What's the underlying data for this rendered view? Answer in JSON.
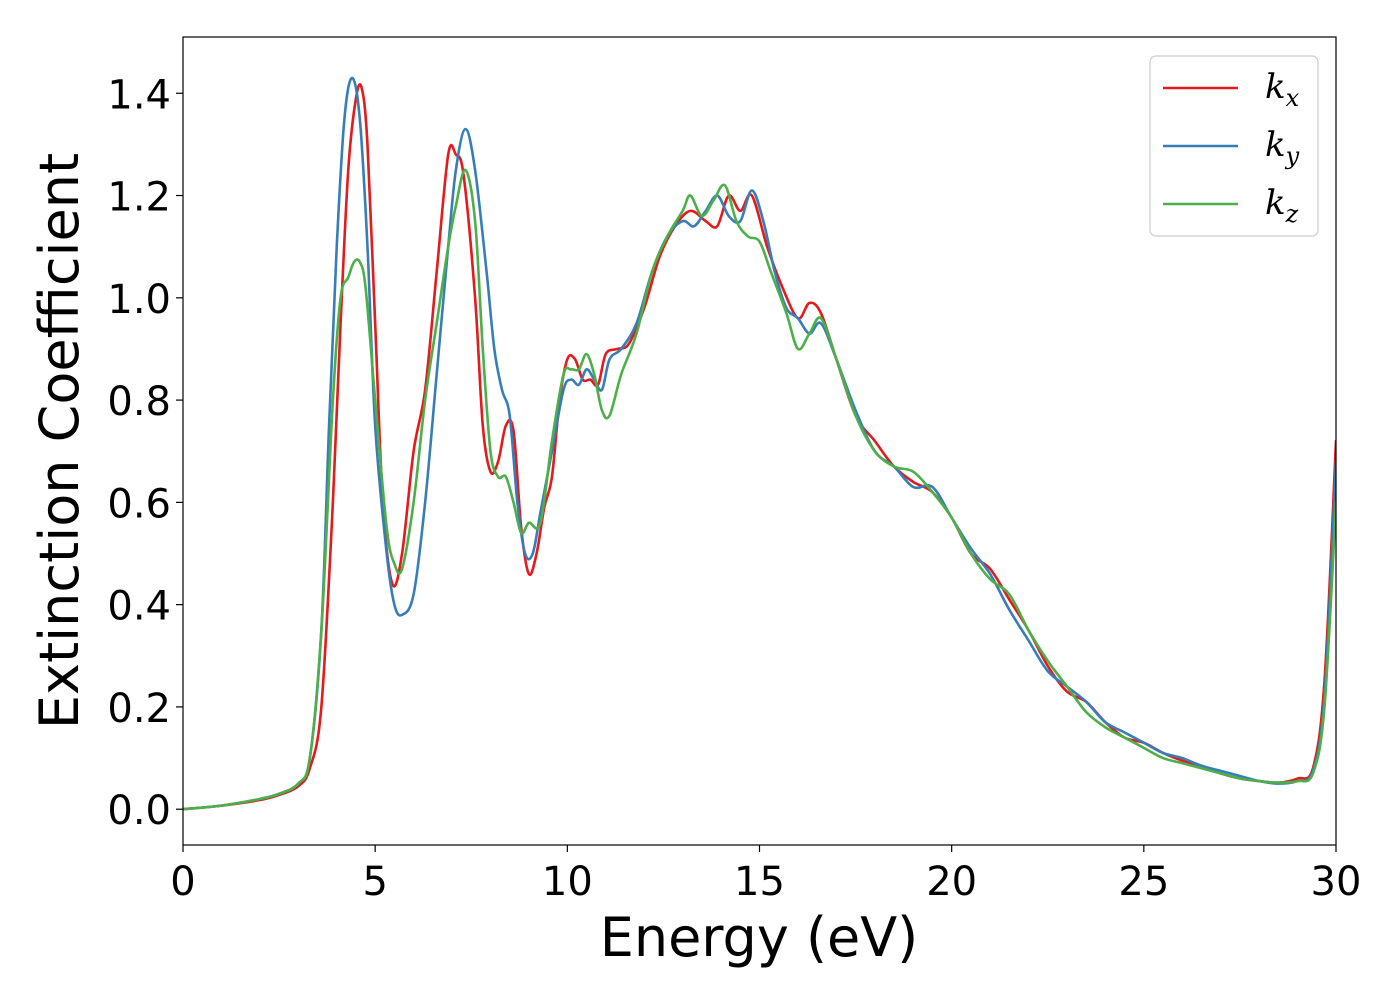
{
  "chart_data": {
    "type": "line",
    "title": "",
    "xlabel": "Energy (eV)",
    "ylabel": "Extinction Coefficient",
    "xlim": [
      0,
      30
    ],
    "ylim": [
      -0.07,
      1.51
    ],
    "xticks": [
      0,
      5,
      10,
      15,
      20,
      25,
      30
    ],
    "yticks": [
      0.0,
      0.2,
      0.4,
      0.6,
      0.8,
      1.0,
      1.2,
      1.4
    ],
    "xtick_labels": [
      "0",
      "5",
      "10",
      "15",
      "20",
      "25",
      "30"
    ],
    "ytick_labels": [
      "0.0",
      "0.2",
      "0.4",
      "0.6",
      "0.8",
      "1.0",
      "1.2",
      "1.4"
    ],
    "grid": false,
    "legend_position": "top-right",
    "series": [
      {
        "name": "k",
        "subscript": "x",
        "color": "#e41a1c",
        "x": [
          0,
          1,
          2,
          2.5,
          3,
          3.3,
          3.6,
          3.9,
          4.1,
          4.3,
          4.5,
          4.65,
          4.8,
          5.0,
          5.2,
          5.45,
          5.7,
          6.0,
          6.3,
          6.6,
          6.9,
          7.1,
          7.3,
          7.6,
          7.8,
          8.0,
          8.2,
          8.4,
          8.6,
          8.8,
          9.0,
          9.2,
          9.4,
          9.6,
          9.8,
          10.0,
          10.2,
          10.4,
          10.6,
          10.8,
          11.0,
          11.3,
          11.6,
          12.0,
          12.4,
          12.8,
          13.2,
          13.6,
          13.9,
          14.2,
          14.5,
          14.8,
          15.2,
          15.6,
          16.0,
          16.3,
          16.6,
          17.0,
          17.5,
          18.0,
          18.5,
          19.0,
          19.5,
          20.0,
          20.5,
          21.0,
          21.5,
          22.0,
          22.5,
          23.0,
          23.5,
          24.0,
          24.5,
          25.0,
          25.5,
          26.0,
          26.5,
          27.0,
          27.5,
          28.0,
          28.5,
          29.0,
          29.4,
          29.7,
          30.0
        ],
        "y": [
          0.0,
          0.007,
          0.018,
          0.028,
          0.045,
          0.08,
          0.2,
          0.6,
          0.95,
          1.25,
          1.39,
          1.41,
          1.3,
          0.95,
          0.6,
          0.44,
          0.5,
          0.7,
          0.82,
          1.05,
          1.28,
          1.28,
          1.24,
          1.0,
          0.75,
          0.66,
          0.68,
          0.75,
          0.74,
          0.55,
          0.46,
          0.5,
          0.59,
          0.65,
          0.8,
          0.88,
          0.88,
          0.84,
          0.84,
          0.83,
          0.89,
          0.9,
          0.91,
          0.98,
          1.08,
          1.14,
          1.17,
          1.15,
          1.14,
          1.2,
          1.17,
          1.2,
          1.1,
          1.02,
          0.96,
          0.99,
          0.97,
          0.88,
          0.77,
          0.72,
          0.67,
          0.64,
          0.62,
          0.57,
          0.5,
          0.47,
          0.41,
          0.35,
          0.28,
          0.23,
          0.21,
          0.17,
          0.14,
          0.13,
          0.11,
          0.095,
          0.085,
          0.07,
          0.06,
          0.055,
          0.052,
          0.06,
          0.08,
          0.25,
          0.72
        ]
      },
      {
        "name": "k",
        "subscript": "y",
        "color": "#377eb8",
        "x": [
          0,
          1,
          2,
          2.5,
          3,
          3.3,
          3.6,
          3.8,
          4.0,
          4.2,
          4.4,
          4.6,
          4.8,
          5.0,
          5.3,
          5.5,
          5.7,
          6.0,
          6.3,
          6.6,
          6.9,
          7.1,
          7.35,
          7.6,
          7.9,
          8.1,
          8.3,
          8.5,
          8.7,
          8.9,
          9.1,
          9.3,
          9.6,
          9.9,
          10.1,
          10.3,
          10.5,
          10.7,
          10.9,
          11.1,
          11.4,
          11.8,
          12.2,
          12.6,
          13.0,
          13.3,
          13.6,
          13.9,
          14.2,
          14.5,
          14.8,
          15.1,
          15.4,
          15.7,
          16.0,
          16.3,
          16.6,
          17.0,
          17.5,
          18.0,
          18.5,
          19.0,
          19.5,
          20.0,
          20.5,
          21.0,
          21.5,
          22.0,
          22.5,
          23.0,
          23.5,
          24.0,
          24.5,
          25.0,
          25.5,
          26.0,
          26.5,
          27.0,
          27.5,
          28.0,
          28.5,
          29.0,
          29.4,
          29.7,
          30.0
        ],
        "y": [
          0.0,
          0.007,
          0.02,
          0.03,
          0.05,
          0.1,
          0.35,
          0.75,
          1.1,
          1.35,
          1.43,
          1.35,
          1.1,
          0.75,
          0.5,
          0.4,
          0.38,
          0.42,
          0.6,
          0.85,
          1.1,
          1.25,
          1.33,
          1.25,
          1.05,
          0.9,
          0.82,
          0.77,
          0.6,
          0.5,
          0.5,
          0.58,
          0.7,
          0.82,
          0.84,
          0.83,
          0.86,
          0.84,
          0.82,
          0.88,
          0.9,
          0.95,
          1.05,
          1.12,
          1.15,
          1.14,
          1.17,
          1.2,
          1.16,
          1.15,
          1.21,
          1.15,
          1.05,
          0.98,
          0.96,
          0.93,
          0.95,
          0.88,
          0.78,
          0.7,
          0.67,
          0.63,
          0.63,
          0.57,
          0.51,
          0.46,
          0.39,
          0.33,
          0.27,
          0.24,
          0.21,
          0.17,
          0.15,
          0.13,
          0.11,
          0.1,
          0.085,
          0.075,
          0.065,
          0.055,
          0.05,
          0.055,
          0.075,
          0.22,
          0.68
        ]
      },
      {
        "name": "k",
        "subscript": "z",
        "color": "#4daf4a",
        "x": [
          0,
          1,
          2,
          2.5,
          3,
          3.3,
          3.6,
          3.9,
          4.1,
          4.3,
          4.45,
          4.6,
          4.75,
          5.0,
          5.3,
          5.5,
          5.7,
          6.0,
          6.3,
          6.6,
          6.9,
          7.1,
          7.35,
          7.6,
          7.8,
          8.0,
          8.2,
          8.4,
          8.6,
          8.8,
          9.0,
          9.3,
          9.6,
          9.9,
          10.1,
          10.3,
          10.5,
          10.7,
          10.9,
          11.1,
          11.4,
          11.8,
          12.2,
          12.6,
          13.0,
          13.2,
          13.5,
          13.8,
          14.1,
          14.4,
          14.7,
          15.0,
          15.3,
          15.7,
          16.0,
          16.3,
          16.6,
          17.0,
          17.5,
          18.0,
          18.5,
          19.0,
          19.5,
          20.0,
          20.5,
          21.0,
          21.5,
          22.0,
          22.5,
          23.0,
          23.5,
          24.0,
          24.5,
          25.0,
          25.5,
          26.0,
          26.5,
          27.0,
          27.5,
          28.0,
          28.5,
          29.0,
          29.4,
          29.7,
          30.0
        ],
        "y": [
          0.0,
          0.007,
          0.02,
          0.03,
          0.05,
          0.1,
          0.35,
          0.8,
          1.0,
          1.04,
          1.07,
          1.07,
          1.02,
          0.8,
          0.55,
          0.48,
          0.47,
          0.6,
          0.8,
          0.95,
          1.1,
          1.18,
          1.25,
          1.15,
          0.9,
          0.7,
          0.65,
          0.65,
          0.6,
          0.54,
          0.56,
          0.56,
          0.72,
          0.85,
          0.86,
          0.86,
          0.89,
          0.85,
          0.78,
          0.77,
          0.85,
          0.93,
          1.05,
          1.12,
          1.17,
          1.2,
          1.16,
          1.19,
          1.22,
          1.15,
          1.12,
          1.11,
          1.05,
          0.97,
          0.9,
          0.93,
          0.96,
          0.88,
          0.77,
          0.7,
          0.67,
          0.66,
          0.62,
          0.57,
          0.5,
          0.45,
          0.42,
          0.35,
          0.29,
          0.24,
          0.19,
          0.16,
          0.14,
          0.12,
          0.1,
          0.09,
          0.08,
          0.07,
          0.06,
          0.055,
          0.052,
          0.055,
          0.07,
          0.2,
          0.6
        ]
      }
    ]
  }
}
